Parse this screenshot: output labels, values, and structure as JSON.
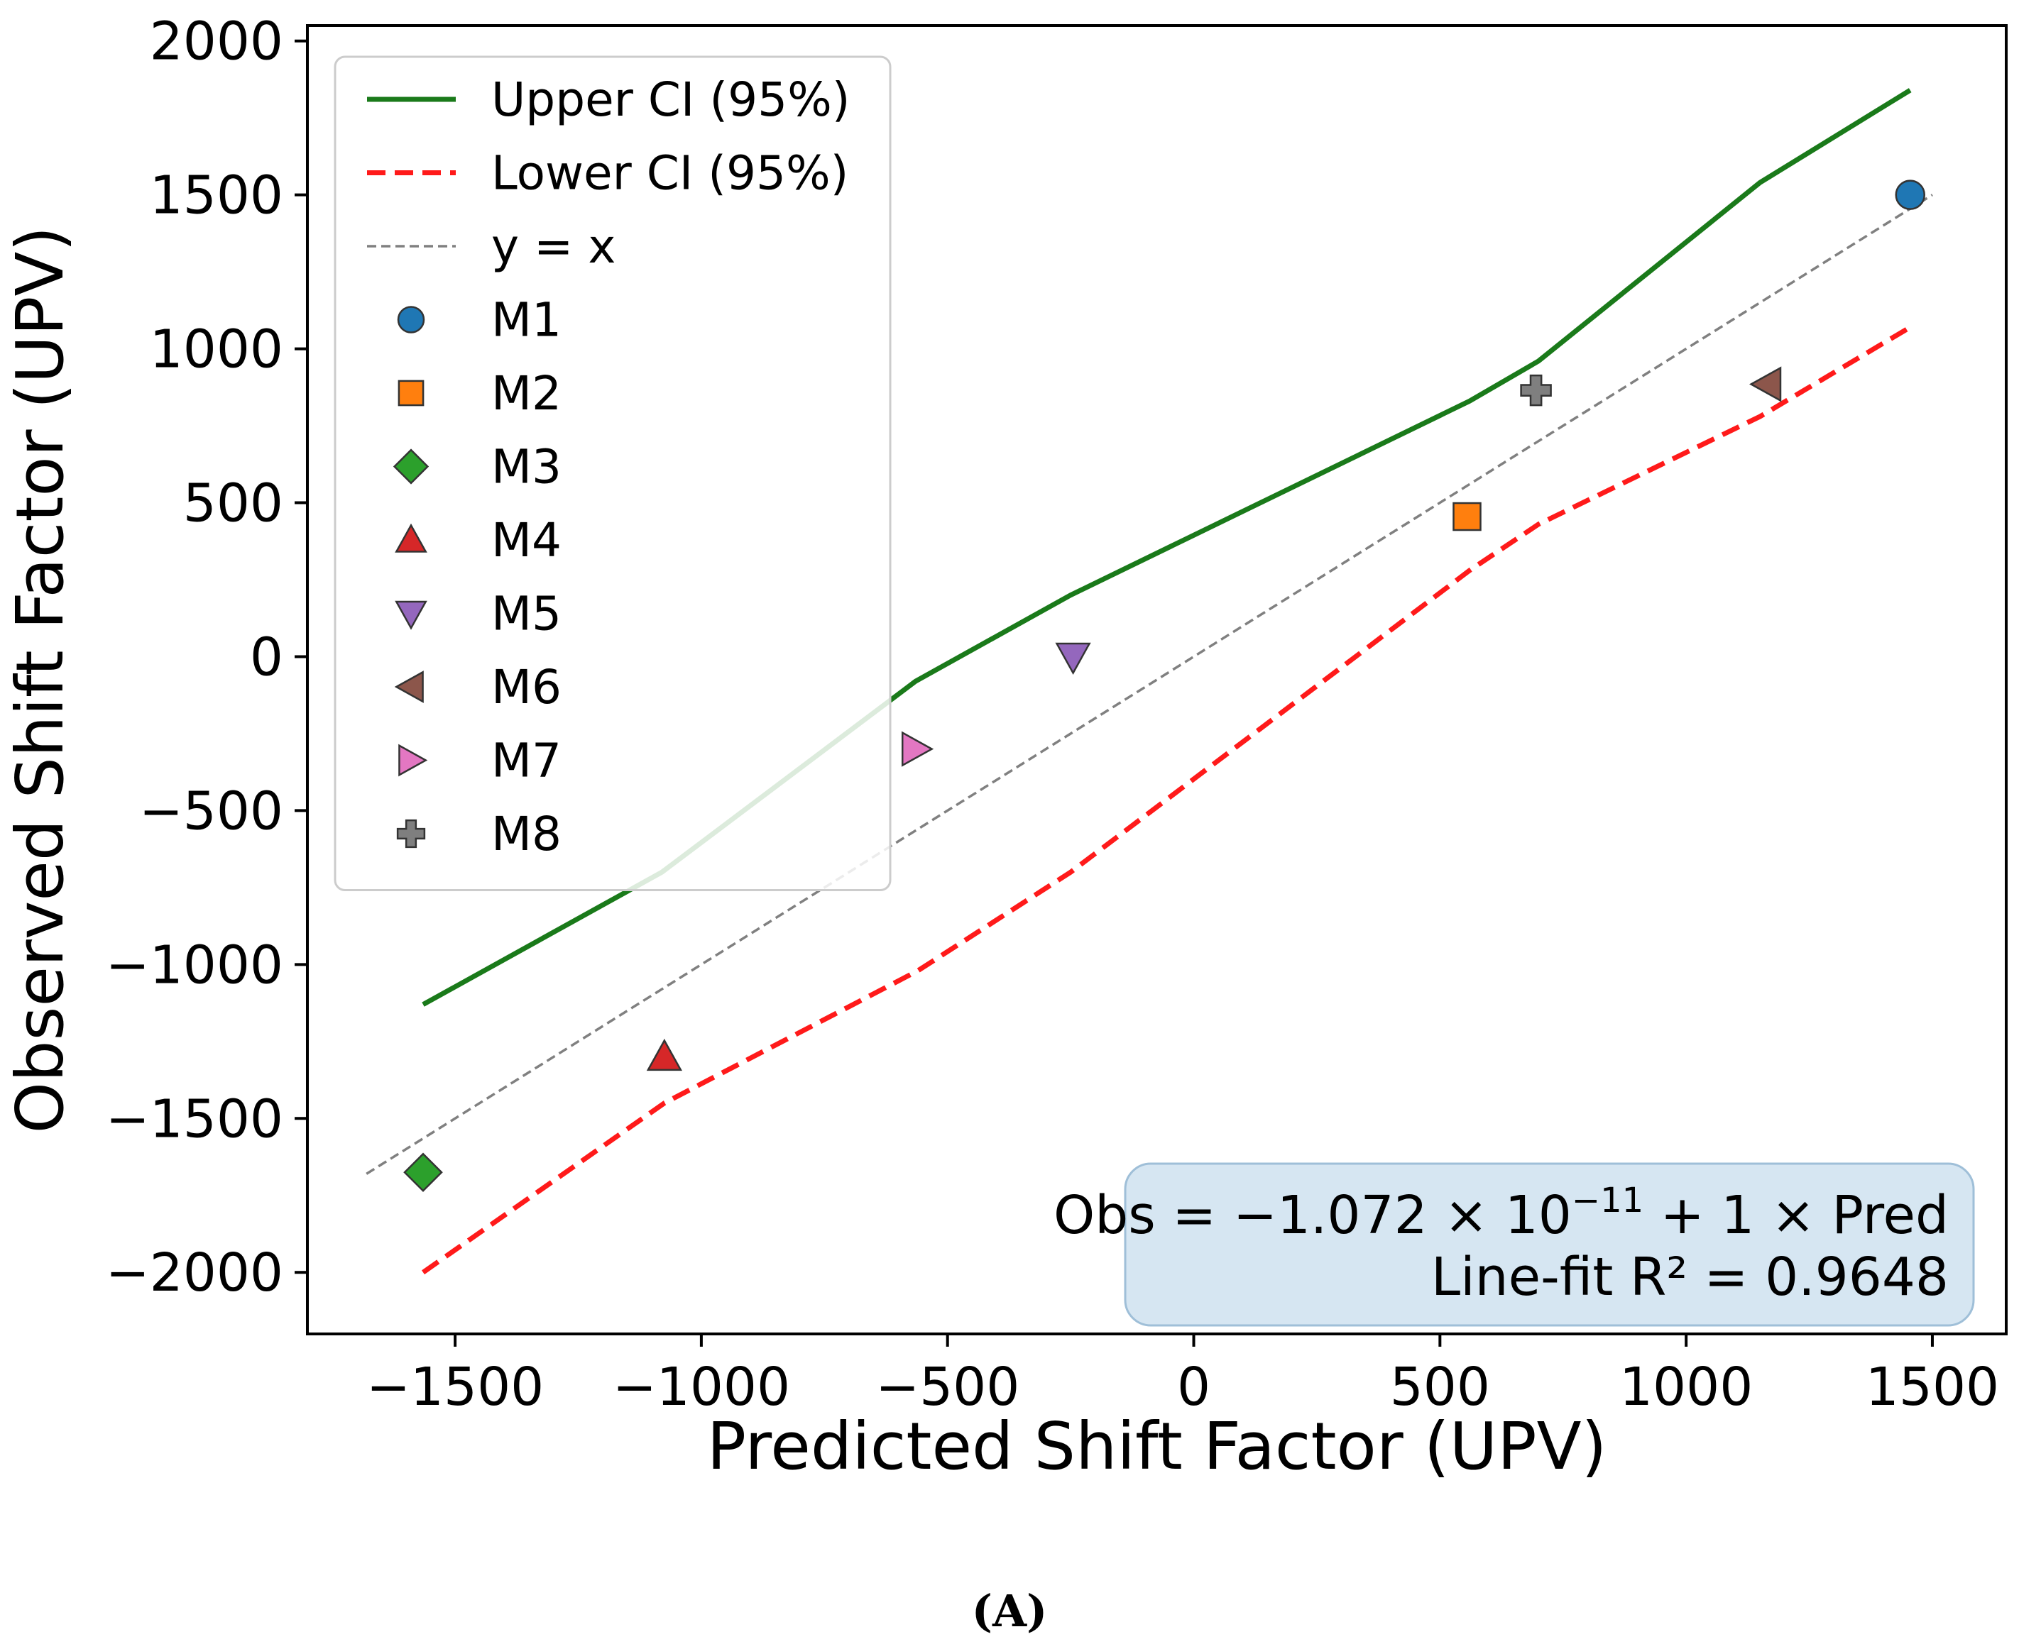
{
  "figure": {
    "panel_label": "(A)"
  },
  "chart_data": {
    "type": "scatter",
    "title": "",
    "xlabel": "Predicted Shift Factor (UPV)",
    "ylabel": "Observed Shift Factor (UPV)",
    "xlim": [
      -1800,
      1650
    ],
    "ylim": [
      -2200,
      2050
    ],
    "xticks": [
      -1500,
      -1000,
      -500,
      0,
      500,
      1000,
      1500
    ],
    "yticks": [
      -2000,
      -1500,
      -1000,
      -500,
      0,
      500,
      1000,
      1500,
      2000
    ],
    "xtick_labels": [
      "−1500",
      "−1000",
      "−500",
      "0",
      "500",
      "1000",
      "1500"
    ],
    "ytick_labels": [
      "−2000",
      "−1500",
      "−1000",
      "−500",
      "0",
      "500",
      "1000",
      "1500",
      "2000"
    ],
    "grid": false,
    "legend_position": "upper-left",
    "lines": [
      {
        "name": "Upper CI (95%)",
        "color": "#1a7a1a",
        "style": "solid",
        "x": [
          -1565,
          -1080,
          -565,
          -250,
          560,
          700,
          1150,
          1455
        ],
        "y": [
          -1130,
          -700,
          -80,
          200,
          830,
          960,
          1540,
          1840
        ]
      },
      {
        "name": "Lower CI (95%)",
        "color": "#ff1a1a",
        "style": "dashed",
        "x": [
          -1565,
          -1075,
          -560,
          -250,
          560,
          700,
          1150,
          1455
        ],
        "y": [
          -2000,
          -1450,
          -1020,
          -700,
          280,
          430,
          780,
          1070
        ]
      },
      {
        "name": "y = x",
        "color": "#808080",
        "style": "dashed-thin",
        "x": [
          -1680,
          1500
        ],
        "y": [
          -1680,
          1500
        ]
      }
    ],
    "points": [
      {
        "name": "M1",
        "x": 1455,
        "y": 1500,
        "marker": "circle",
        "color": "#1f77b4"
      },
      {
        "name": "M2",
        "x": 555,
        "y": 455,
        "marker": "square",
        "color": "#ff7f0e"
      },
      {
        "name": "M3",
        "x": -1565,
        "y": -1675,
        "marker": "diamond",
        "color": "#2ca02c"
      },
      {
        "name": "M4",
        "x": -1075,
        "y": -1300,
        "marker": "triangle-up",
        "color": "#d62728"
      },
      {
        "name": "M5",
        "x": -245,
        "y": 0,
        "marker": "triangle-down",
        "color": "#9467bd"
      },
      {
        "name": "M6",
        "x": 1165,
        "y": 885,
        "marker": "triangle-left",
        "color": "#8c564b"
      },
      {
        "name": "M7",
        "x": -565,
        "y": -300,
        "marker": "triangle-right",
        "color": "#e377c2"
      },
      {
        "name": "M8",
        "x": 695,
        "y": 865,
        "marker": "plus",
        "color": "#7f7f7f"
      }
    ],
    "annotation": {
      "line1": "Obs = −1.072 × 10",
      "line1_exponent": "−11",
      "line1_suffix": " + 1 × Pred",
      "line2": "Line-fit R² = 0.9648",
      "background": "#d6e6f2",
      "position": "lower-right"
    }
  }
}
